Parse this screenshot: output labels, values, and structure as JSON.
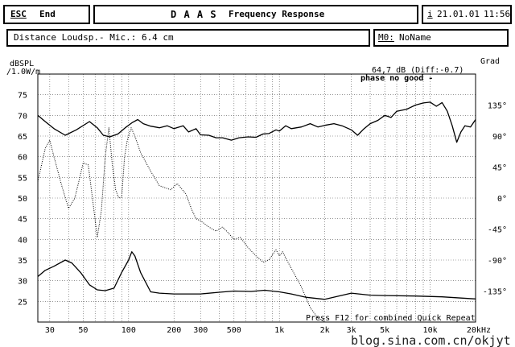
{
  "header": {
    "esc_key": "ESC",
    "esc_label": "End",
    "title_letters": "D A A S",
    "title_rest": "Frequency Response",
    "date_prefix": "i",
    "date": "21.01.01",
    "time": "11:56"
  },
  "info": {
    "distance": "Distance Loudsp.- Mic.: 6.4 cm",
    "memo_key": "M0:",
    "memo_value": "NoName"
  },
  "readout": {
    "value": "64,7 dB (Diff:-0.7)",
    "phase_text": "phase no good -"
  },
  "footer_hint": "Press F12 for combined Quick Repeat",
  "watermark": "blog.sina.com.cn/okjyt",
  "chart_data": {
    "type": "line",
    "xscale": "log",
    "xlim": [
      25,
      20000
    ],
    "ylim_left": [
      20,
      80
    ],
    "ylim_right": [
      -180,
      180
    ],
    "left_axis_label_line1": "dBSPL",
    "left_axis_label_line2": "/1.0W/m",
    "right_axis_label": "Grad",
    "y_ticks_left": [
      "75",
      "70",
      "65",
      "60",
      "55",
      "50",
      "45",
      "40",
      "35",
      "30",
      "25"
    ],
    "y_ticks_right": [
      "135°",
      "90°",
      "45°",
      "0°",
      "-45°",
      "-90°",
      "-135°"
    ],
    "x_ticks": [
      {
        "v": 30,
        "label": "30"
      },
      {
        "v": 50,
        "label": "50"
      },
      {
        "v": 100,
        "label": "100"
      },
      {
        "v": 200,
        "label": "200"
      },
      {
        "v": 300,
        "label": "300"
      },
      {
        "v": 500,
        "label": "500"
      },
      {
        "v": 1000,
        "label": "1k"
      },
      {
        "v": 2000,
        "label": "2k"
      },
      {
        "v": 3000,
        "label": "3k"
      },
      {
        "v": 5000,
        "label": "5k"
      },
      {
        "v": 10000,
        "label": "10k"
      },
      {
        "v": 20000,
        "label": "20kHz"
      }
    ],
    "grid": true,
    "series": [
      {
        "style": "solid",
        "points": [
          [
            25,
            70
          ],
          [
            28,
            68.5
          ],
          [
            32,
            66.8
          ],
          [
            38,
            65.2
          ],
          [
            45,
            66.5
          ],
          [
            55,
            68.5
          ],
          [
            62,
            67
          ],
          [
            68,
            65.2
          ],
          [
            75,
            64.8
          ],
          [
            85,
            65.5
          ],
          [
            95,
            67
          ],
          [
            105,
            68.2
          ],
          [
            115,
            69
          ],
          [
            125,
            68
          ],
          [
            140,
            67.4
          ],
          [
            160,
            67
          ],
          [
            180,
            67.5
          ],
          [
            200,
            66.8
          ],
          [
            230,
            67.5
          ],
          [
            250,
            66
          ],
          [
            280,
            66.8
          ],
          [
            300,
            65.3
          ],
          [
            340,
            65.2
          ],
          [
            380,
            64.6
          ],
          [
            420,
            64.6
          ],
          [
            480,
            64
          ],
          [
            540,
            64.6
          ],
          [
            620,
            64.8
          ],
          [
            700,
            64.7
          ],
          [
            780,
            65.5
          ],
          [
            850,
            65.6
          ],
          [
            950,
            66.5
          ],
          [
            1000,
            66.2
          ],
          [
            1100,
            67.5
          ],
          [
            1200,
            66.8
          ],
          [
            1400,
            67.2
          ],
          [
            1600,
            68
          ],
          [
            1800,
            67.2
          ],
          [
            2000,
            67.6
          ],
          [
            2300,
            68
          ],
          [
            2600,
            67.5
          ],
          [
            3000,
            66.5
          ],
          [
            3300,
            65.2
          ],
          [
            3600,
            66.6
          ],
          [
            4000,
            68
          ],
          [
            4500,
            68.8
          ],
          [
            5000,
            70
          ],
          [
            5500,
            69.5
          ],
          [
            6000,
            71
          ],
          [
            7000,
            71.5
          ],
          [
            8000,
            72.5
          ],
          [
            9000,
            73
          ],
          [
            10000,
            73.2
          ],
          [
            11000,
            72.2
          ],
          [
            12000,
            73.1
          ],
          [
            13000,
            71
          ],
          [
            14000,
            67.5
          ],
          [
            15000,
            63.5
          ],
          [
            16000,
            66
          ],
          [
            17000,
            67.5
          ],
          [
            18500,
            67.2
          ],
          [
            20000,
            69
          ]
        ]
      },
      {
        "style": "dotted",
        "points": [
          [
            25,
            54
          ],
          [
            28,
            62
          ],
          [
            30,
            64
          ],
          [
            32,
            60
          ],
          [
            36,
            53
          ],
          [
            40,
            47.5
          ],
          [
            44,
            50
          ],
          [
            50,
            58.5
          ],
          [
            54,
            58
          ],
          [
            58,
            49
          ],
          [
            62,
            40.5
          ],
          [
            66,
            47
          ],
          [
            70,
            60
          ],
          [
            74,
            67
          ],
          [
            78,
            58
          ],
          [
            82,
            52
          ],
          [
            86,
            50
          ],
          [
            90,
            50.2
          ],
          [
            94,
            60
          ],
          [
            98,
            64
          ],
          [
            104,
            67
          ],
          [
            110,
            65
          ],
          [
            120,
            61
          ],
          [
            140,
            56.5
          ],
          [
            160,
            53
          ],
          [
            190,
            52
          ],
          [
            210,
            53.5
          ],
          [
            240,
            51
          ],
          [
            260,
            47.5
          ],
          [
            280,
            45
          ],
          [
            300,
            44.5
          ],
          [
            340,
            43
          ],
          [
            380,
            42
          ],
          [
            420,
            43
          ],
          [
            460,
            41.5
          ],
          [
            500,
            40
          ],
          [
            550,
            40.5
          ],
          [
            620,
            38
          ],
          [
            700,
            36
          ],
          [
            780,
            34.5
          ],
          [
            850,
            35
          ],
          [
            950,
            37.5
          ],
          [
            1000,
            36
          ],
          [
            1050,
            37
          ],
          [
            1100,
            35.5
          ],
          [
            1200,
            33
          ],
          [
            1400,
            28.5
          ],
          [
            1600,
            23.5
          ],
          [
            1800,
            21
          ],
          [
            2000,
            20
          ]
        ]
      },
      {
        "style": "solid",
        "points": [
          [
            25,
            31
          ],
          [
            28,
            32.5
          ],
          [
            32,
            33.5
          ],
          [
            38,
            35
          ],
          [
            42,
            34.3
          ],
          [
            48,
            32
          ],
          [
            55,
            29
          ],
          [
            62,
            27.8
          ],
          [
            70,
            27.6
          ],
          [
            80,
            28.2
          ],
          [
            90,
            32
          ],
          [
            100,
            35
          ],
          [
            105,
            37
          ],
          [
            110,
            36
          ],
          [
            120,
            32
          ],
          [
            140,
            27.3
          ],
          [
            160,
            27
          ],
          [
            200,
            26.8
          ],
          [
            300,
            26.8
          ],
          [
            400,
            27.2
          ],
          [
            500,
            27.5
          ],
          [
            650,
            27.4
          ],
          [
            800,
            27.7
          ],
          [
            1000,
            27.3
          ],
          [
            1200,
            26.8
          ],
          [
            1500,
            26
          ],
          [
            2000,
            25.5
          ],
          [
            3000,
            27
          ],
          [
            4000,
            26.5
          ],
          [
            5000,
            26.4
          ],
          [
            8000,
            26.3
          ],
          [
            12000,
            26.1
          ],
          [
            20000,
            25.6
          ]
        ]
      }
    ]
  }
}
